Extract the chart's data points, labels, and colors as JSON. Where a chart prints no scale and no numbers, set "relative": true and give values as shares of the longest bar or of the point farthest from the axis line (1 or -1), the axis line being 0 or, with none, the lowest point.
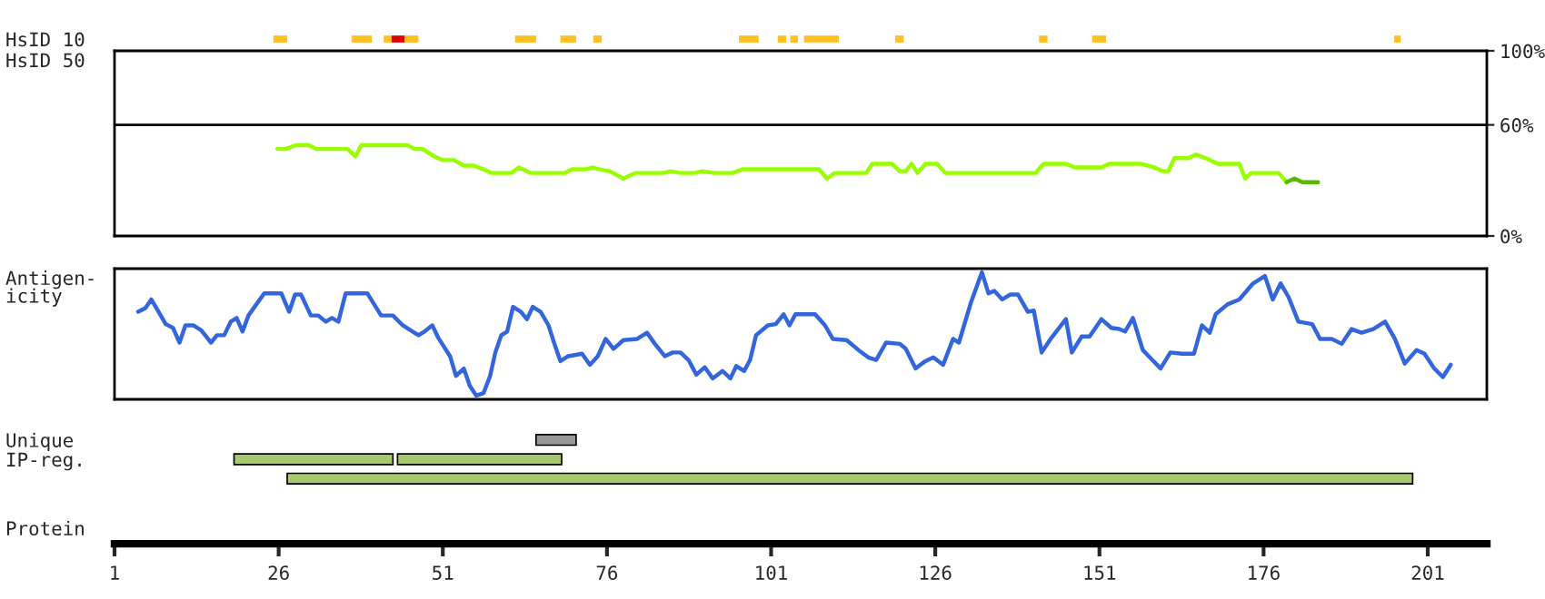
{
  "chart_data": [
    {
      "type": "bar",
      "orientation": "horizontal",
      "categories": [
        "HsID 10"
      ],
      "xlim": [
        1,
        210
      ],
      "tick_labels": "y",
      "series": [
        {
          "color": "#ffc020",
          "base": [
            25.2
          ],
          "values": [
            2.1
          ]
        },
        {
          "color": "#ffc020",
          "base": [
            37.1
          ],
          "values": [
            3.1
          ]
        },
        {
          "color": "#ffc020",
          "base": [
            42.0
          ],
          "values": [
            1.2
          ]
        },
        {
          "color": "#dd0000",
          "base": [
            43.2
          ],
          "values": [
            2.0
          ]
        },
        {
          "color": "#ffc020",
          "base": [
            45.2
          ],
          "values": [
            2.1
          ]
        },
        {
          "color": "#ffc020",
          "base": [
            62.0
          ],
          "values": [
            3.2
          ]
        },
        {
          "color": "#ffc020",
          "base": [
            68.9
          ],
          "values": [
            2.4
          ]
        },
        {
          "color": "#ffc020",
          "base": [
            73.9
          ],
          "values": [
            1.3
          ]
        },
        {
          "color": "#ffc020",
          "base": [
            96.1
          ],
          "values": [
            3.0
          ]
        },
        {
          "color": "#ffc020",
          "base": [
            102.0
          ],
          "values": [
            1.3
          ]
        },
        {
          "color": "#ffc020",
          "base": [
            103.9
          ],
          "values": [
            1.2
          ]
        },
        {
          "color": "#ffc020",
          "base": [
            106.0
          ],
          "values": [
            5.3
          ]
        },
        {
          "color": "#ffc020",
          "base": [
            119.9
          ],
          "values": [
            1.3
          ]
        },
        {
          "color": "#ffc020",
          "base": [
            141.8
          ],
          "values": [
            1.3
          ]
        },
        {
          "color": "#ffc020",
          "base": [
            149.9
          ],
          "values": [
            2.1
          ]
        },
        {
          "color": "#ffc020",
          "base": [
            195.9
          ],
          "values": [
            1.0
          ]
        }
      ]
    },
    {
      "type": "line",
      "ylabel": "HsID 50",
      "xlim": [
        1,
        210
      ],
      "ylim": [
        0,
        100
      ],
      "yticks": [
        {
          "value": 0,
          "label": "0%"
        },
        {
          "value": 60,
          "label": "60%"
        },
        {
          "value": 100,
          "label": "100%"
        }
      ],
      "tick_labels": "y",
      "ref_lines": [
        {
          "axis": "y",
          "value": 60,
          "color": "#000000"
        }
      ],
      "series": [
        {
          "color": "#99ff00",
          "x": [
            25.8,
            27.1,
            28.6,
            30.6,
            31.7,
            36.5,
            37.7,
            38.6,
            45.6,
            46.7,
            47.9,
            49.7,
            50.9,
            52.7,
            54.2,
            55.7,
            57.2,
            58.4,
            61.4,
            62.6,
            64.4,
            69.5,
            70.7,
            72.8,
            73.7,
            74.9,
            76.4,
            78.5,
            80.3,
            84.5,
            85.7,
            87.2,
            89.3,
            90.5,
            92.4,
            95.1,
            96.6,
            108.3,
            109.5,
            110.7,
            115.5,
            116.4,
            119.4,
            120.6,
            121.5,
            122.4,
            123.3,
            124.5,
            126.3,
            127.5,
            141.3,
            142.5,
            145.8,
            147.3,
            151.3,
            152.5,
            157.3,
            159.4,
            160.6,
            161.5,
            162.4,
            164.5,
            165.7,
            167.2,
            169.0,
            172.3,
            173.2,
            174.1,
            178.3,
            179.5
          ],
          "values": [
            47,
            47,
            49,
            49,
            47,
            47,
            43,
            49,
            49,
            47,
            47,
            43,
            41,
            41,
            38,
            38,
            36,
            34,
            34,
            37,
            34,
            34,
            36,
            36,
            37,
            36,
            35,
            31,
            34,
            34,
            35,
            34,
            34,
            35,
            34,
            34,
            36,
            36,
            31,
            34,
            34,
            39,
            39,
            35,
            35,
            39,
            34,
            39,
            39,
            34,
            34,
            39,
            39,
            37,
            37,
            39,
            39,
            37,
            35,
            35,
            42,
            42,
            44,
            42,
            39,
            39,
            31,
            34,
            34,
            29
          ]
        },
        {
          "color": "#55bb00",
          "x": [
            179.5,
            180.7,
            181.9,
            184.3
          ],
          "values": [
            29,
            31,
            29,
            29
          ]
        }
      ]
    },
    {
      "type": "line",
      "ylabel": "Antigen-\nicity",
      "relative": true,
      "xlim": [
        1,
        210
      ],
      "series": [
        {
          "color": "#3366dd",
          "x": [
            4.6,
            5.7,
            6.6,
            7.6,
            8.8,
            9.9,
            10.9,
            11.8,
            13.0,
            14.2,
            15.7,
            16.6,
            17.7,
            18.7,
            19.6,
            20.5,
            21.4,
            22.6,
            23.8,
            26.4,
            27.6,
            28.5,
            29.4,
            30.9,
            32.0,
            33.2,
            34.1,
            35.1,
            36.2,
            39.5,
            41.6,
            43.4,
            44.9,
            46.4,
            47.3,
            48.2,
            49.4,
            50.3,
            52.1,
            53.0,
            54.2,
            55.1,
            56.1,
            57.2,
            58.2,
            59.0,
            59.9,
            60.8,
            61.7,
            62.9,
            63.8,
            64.7,
            65.9,
            67.1,
            68.0,
            68.9,
            70.1,
            72.2,
            73.4,
            74.6,
            75.8,
            77.0,
            78.5,
            80.6,
            82.1,
            83.3,
            84.8,
            86.0,
            87.2,
            88.4,
            89.6,
            90.9,
            92.1,
            93.6,
            94.8,
            95.7,
            96.9,
            97.8,
            98.7,
            100.5,
            101.7,
            102.9,
            103.8,
            104.7,
            107.7,
            109.2,
            110.4,
            112.5,
            114.3,
            115.8,
            117.0,
            118.5,
            120.6,
            121.5,
            123.0,
            124.5,
            125.7,
            127.2,
            128.7,
            129.6,
            131.4,
            133.1,
            134.1,
            135.0,
            136.2,
            137.4,
            138.6,
            140.1,
            141.0,
            142.2,
            143.7,
            145.9,
            146.8,
            148.3,
            149.5,
            151.3,
            152.8,
            154.0,
            154.9,
            156.1,
            157.6,
            158.5,
            160.3,
            161.8,
            163.6,
            165.4,
            166.6,
            167.8,
            168.7,
            170.5,
            172.3,
            174.4,
            176.2,
            177.4,
            178.6,
            179.8,
            181.3,
            183.4,
            184.6,
            186.4,
            187.9,
            189.4,
            190.9,
            192.7,
            194.5,
            196.0,
            197.5,
            199.3,
            200.5,
            202.0,
            203.3,
            204.5
          ],
          "values": [
            0.68,
            0.71,
            0.78,
            0.69,
            0.58,
            0.55,
            0.43,
            0.57,
            0.57,
            0.53,
            0.43,
            0.49,
            0.49,
            0.6,
            0.63,
            0.52,
            0.65,
            0.74,
            0.83,
            0.83,
            0.68,
            0.82,
            0.82,
            0.65,
            0.65,
            0.6,
            0.63,
            0.6,
            0.83,
            0.83,
            0.65,
            0.65,
            0.57,
            0.52,
            0.49,
            0.52,
            0.57,
            0.47,
            0.32,
            0.16,
            0.22,
            0.08,
            0.0,
            0.02,
            0.16,
            0.35,
            0.49,
            0.52,
            0.72,
            0.68,
            0.62,
            0.72,
            0.68,
            0.57,
            0.42,
            0.28,
            0.32,
            0.34,
            0.25,
            0.32,
            0.46,
            0.38,
            0.45,
            0.46,
            0.51,
            0.42,
            0.32,
            0.35,
            0.35,
            0.29,
            0.17,
            0.23,
            0.14,
            0.2,
            0.14,
            0.24,
            0.2,
            0.29,
            0.49,
            0.57,
            0.58,
            0.66,
            0.57,
            0.66,
            0.66,
            0.57,
            0.46,
            0.45,
            0.37,
            0.31,
            0.29,
            0.43,
            0.42,
            0.38,
            0.22,
            0.28,
            0.31,
            0.25,
            0.46,
            0.43,
            0.75,
            1.0,
            0.83,
            0.85,
            0.78,
            0.82,
            0.82,
            0.68,
            0.69,
            0.35,
            0.47,
            0.62,
            0.35,
            0.48,
            0.48,
            0.62,
            0.55,
            0.54,
            0.52,
            0.63,
            0.37,
            0.32,
            0.22,
            0.35,
            0.34,
            0.34,
            0.57,
            0.51,
            0.66,
            0.74,
            0.78,
            0.91,
            0.97,
            0.78,
            0.91,
            0.8,
            0.6,
            0.58,
            0.46,
            0.46,
            0.42,
            0.54,
            0.51,
            0.54,
            0.6,
            0.46,
            0.26,
            0.37,
            0.34,
            0.22,
            0.15,
            0.25
          ]
        }
      ]
    },
    {
      "type": "bar",
      "orientation": "horizontal",
      "categories": [
        "Unique",
        "IP-reg.",
        null
      ],
      "xlim": [
        1,
        210
      ],
      "xticks": [
        1,
        26,
        51,
        76,
        101,
        126,
        151,
        176,
        201
      ],
      "annotations": [
        "Protein"
      ],
      "series": [
        {
          "color": "#999999",
          "base": [
            65.2,
            null,
            null
          ],
          "values": [
            6.1,
            null,
            null
          ]
        },
        {
          "color": "#a8c870",
          "base": [
            null,
            19.2,
            27.3
          ],
          "values": [
            null,
            24.2,
            171.4
          ]
        },
        {
          "color": "#a8c870",
          "base": [
            null,
            44.1,
            null
          ],
          "values": [
            null,
            25.0,
            null
          ]
        }
      ]
    }
  ]
}
